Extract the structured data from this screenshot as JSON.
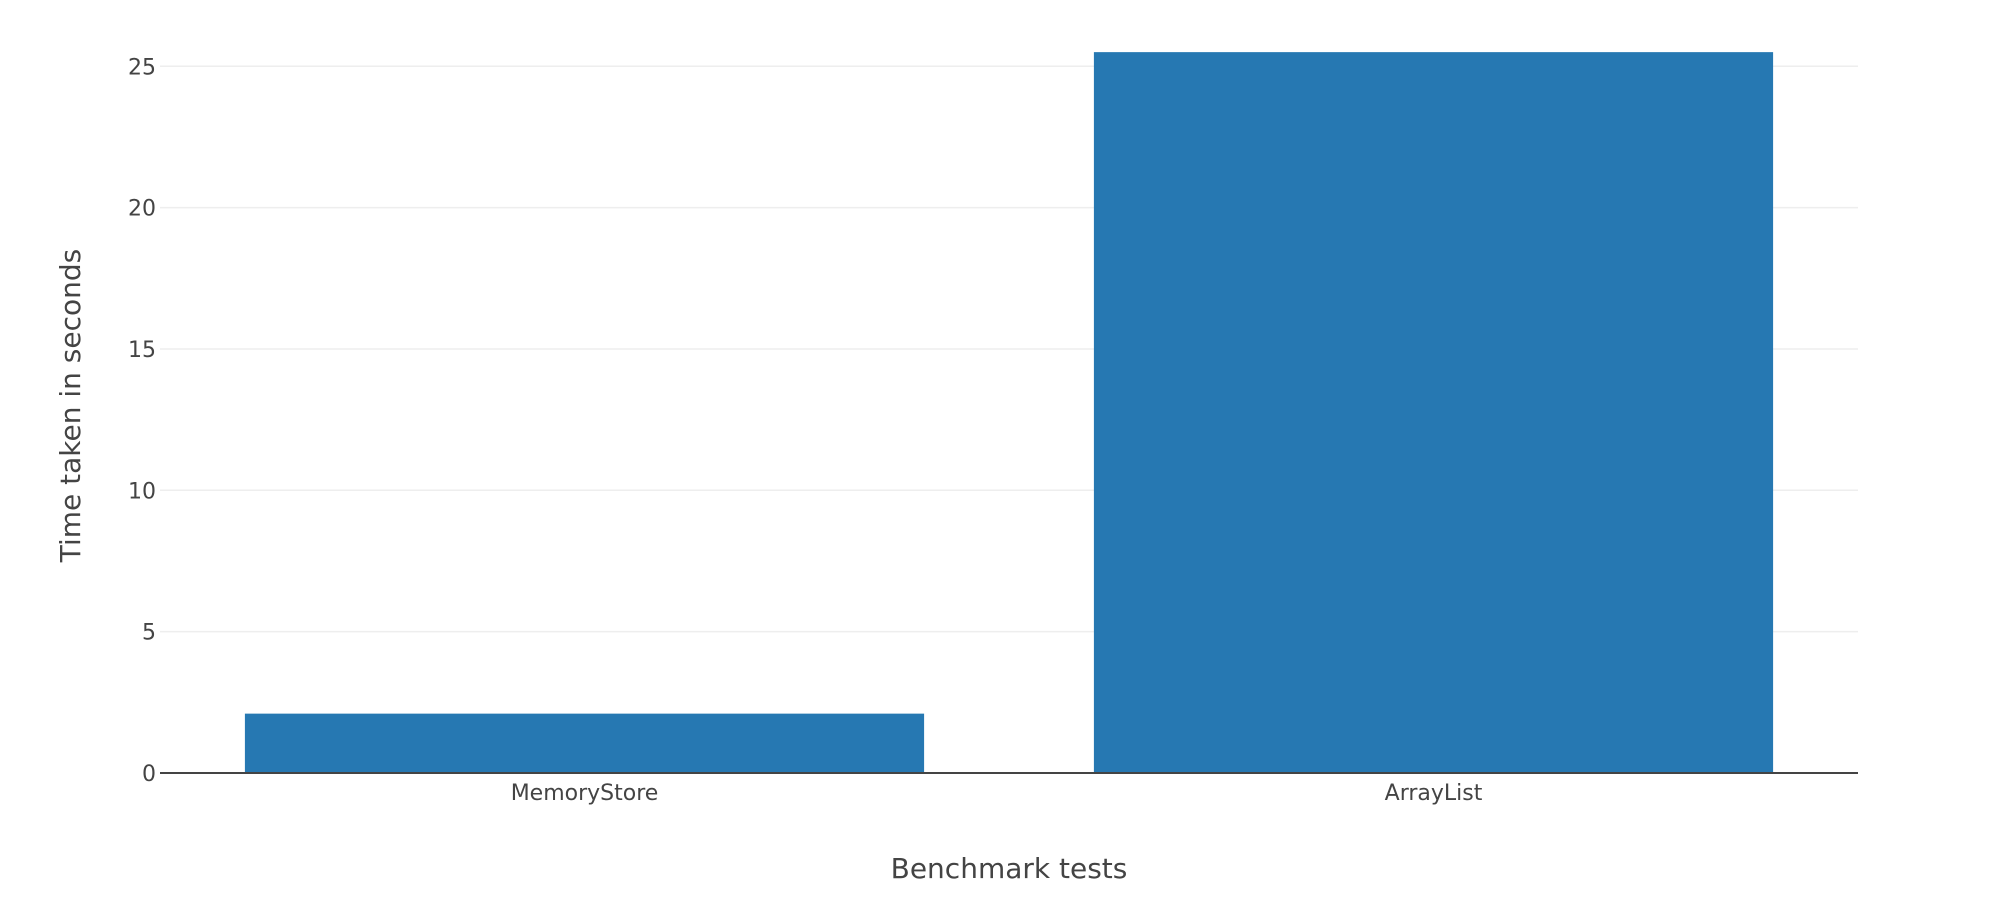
{
  "chart_data": {
    "type": "bar",
    "title": "",
    "xlabel": "Benchmark tests",
    "ylabel": "Time taken in seconds",
    "categories": [
      "MemoryStore",
      "ArrayList"
    ],
    "values": [
      2.1,
      25.5
    ],
    "ylim": [
      0,
      26.0
    ],
    "yticks": [
      0,
      5,
      10,
      15,
      20,
      25
    ],
    "grid": true,
    "legend": "none",
    "bar_color": "#2678b2"
  }
}
